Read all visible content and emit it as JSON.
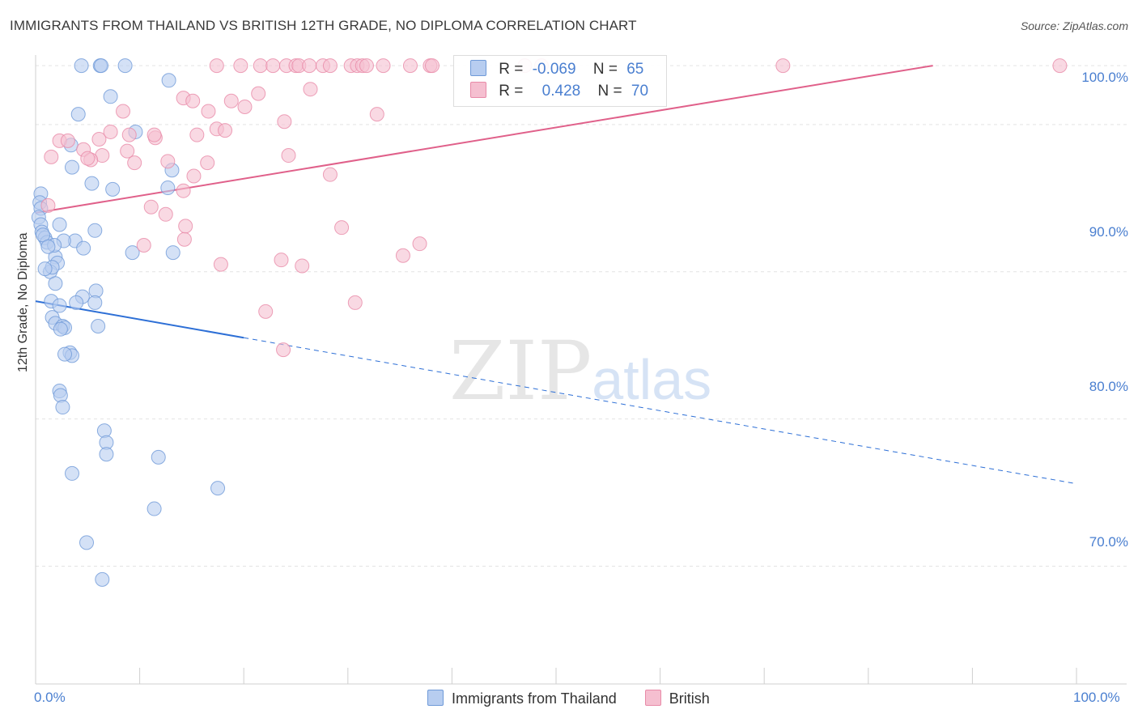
{
  "title": "IMMIGRANTS FROM THAILAND VS BRITISH 12TH GRADE, NO DIPLOMA CORRELATION CHART",
  "source": "Source: ZipAtlas.com",
  "watermark": {
    "zip": "ZIP",
    "atlas": "atlas"
  },
  "legend": {
    "rows": [
      {
        "r_label": "R =",
        "r_value": "-0.069",
        "n_label": "N =",
        "n_value": "65"
      },
      {
        "r_label": "R =",
        "r_value": "0.428",
        "n_label": "N =",
        "n_value": "70"
      }
    ]
  },
  "bottom_legend": [
    "Immigrants from Thailand",
    "British"
  ],
  "colors": {
    "blue_fill": "#b7cdf0",
    "blue_stroke": "#6f9ad8",
    "blue_line": "#2d6fd6",
    "pink_fill": "#f5bfd0",
    "pink_stroke": "#e88aa8",
    "pink_line": "#e0608a",
    "tick_text": "#4a7fd0",
    "grid": "#e3e3e3"
  },
  "chart_data": {
    "type": "scatter",
    "title": "IMMIGRANTS FROM THAILAND VS BRITISH 12TH GRADE, NO DIPLOMA CORRELATION CHART",
    "xlabel": "",
    "ylabel": "12th Grade, No Diploma",
    "xlim": [
      0,
      100
    ],
    "ylim": [
      62,
      104.5
    ],
    "x_tick_labels": [
      "0.0%",
      "100.0%"
    ],
    "y_ticks": [
      70,
      80,
      90,
      100
    ],
    "y_tick_labels": [
      "70.0%",
      "80.0%",
      "90.0%",
      "100.0%"
    ],
    "series": [
      {
        "name": "Immigrants from Thailand",
        "color": "#6f9ad8",
        "r": -0.069,
        "n": 65,
        "trend": {
          "x0": 0,
          "y0": 88.0,
          "x1": 100,
          "y1": 75.6,
          "solid_until": 20
        },
        "points": [
          [
            4.4,
            104
          ],
          [
            6.2,
            104
          ],
          [
            6.3,
            104
          ],
          [
            8.6,
            104
          ],
          [
            12.8,
            103
          ],
          [
            7.2,
            101.9
          ],
          [
            4.1,
            100.7
          ],
          [
            9.6,
            99.5
          ],
          [
            3.4,
            98.6
          ],
          [
            3.5,
            97.1
          ],
          [
            13.1,
            96.9
          ],
          [
            5.4,
            96.0
          ],
          [
            7.4,
            95.6
          ],
          [
            12.7,
            95.7
          ],
          [
            0.5,
            95.3
          ],
          [
            0.4,
            94.7
          ],
          [
            0.5,
            94.3
          ],
          [
            0.3,
            93.7
          ],
          [
            0.5,
            93.2
          ],
          [
            2.3,
            93.2
          ],
          [
            0.6,
            92.7
          ],
          [
            0.9,
            92.3
          ],
          [
            1.1,
            92.0
          ],
          [
            3.8,
            92.1
          ],
          [
            2.7,
            92.1
          ],
          [
            5.7,
            92.8
          ],
          [
            4.6,
            91.6
          ],
          [
            9.3,
            91.3
          ],
          [
            13.2,
            91.3
          ],
          [
            1.9,
            91.0
          ],
          [
            2.1,
            90.6
          ],
          [
            1.4,
            90.0
          ],
          [
            1.6,
            90.3
          ],
          [
            1.9,
            89.2
          ],
          [
            5.8,
            88.7
          ],
          [
            4.5,
            88.3
          ],
          [
            1.5,
            88.0
          ],
          [
            3.9,
            87.9
          ],
          [
            5.7,
            87.9
          ],
          [
            2.3,
            87.7
          ],
          [
            1.6,
            86.9
          ],
          [
            1.9,
            86.5
          ],
          [
            2.6,
            86.3
          ],
          [
            2.8,
            86.2
          ],
          [
            2.4,
            86.1
          ],
          [
            6.0,
            86.3
          ],
          [
            3.3,
            84.5
          ],
          [
            3.5,
            84.3
          ],
          [
            2.8,
            84.4
          ],
          [
            2.3,
            81.9
          ],
          [
            2.4,
            81.6
          ],
          [
            2.6,
            80.8
          ],
          [
            6.6,
            79.2
          ],
          [
            6.8,
            78.4
          ],
          [
            6.8,
            77.6
          ],
          [
            11.8,
            77.4
          ],
          [
            3.5,
            76.3
          ],
          [
            17.5,
            75.3
          ],
          [
            11.4,
            73.9
          ],
          [
            4.9,
            71.6
          ],
          [
            6.4,
            69.1
          ],
          [
            1.8,
            91.8
          ],
          [
            0.7,
            92.5
          ],
          [
            1.2,
            91.7
          ],
          [
            0.9,
            90.2
          ]
        ]
      },
      {
        "name": "British",
        "color": "#e88aa8",
        "r": 0.428,
        "n": 70,
        "trend": {
          "x0": 0,
          "y0": 94.0,
          "x1": 100,
          "y1": 105.6
        },
        "points": [
          [
            17.4,
            104
          ],
          [
            19.7,
            104
          ],
          [
            21.6,
            104
          ],
          [
            22.8,
            104
          ],
          [
            24.1,
            104
          ],
          [
            25.0,
            104
          ],
          [
            25.3,
            104
          ],
          [
            26.3,
            104
          ],
          [
            27.6,
            104
          ],
          [
            28.3,
            104
          ],
          [
            30.3,
            104
          ],
          [
            30.9,
            104
          ],
          [
            31.4,
            104
          ],
          [
            31.8,
            104
          ],
          [
            33.4,
            104
          ],
          [
            36.0,
            104
          ],
          [
            37.9,
            104
          ],
          [
            38.1,
            104
          ],
          [
            47.0,
            104
          ],
          [
            48.6,
            104
          ],
          [
            71.8,
            104
          ],
          [
            98.4,
            104
          ],
          [
            21.4,
            102.1
          ],
          [
            14.2,
            101.8
          ],
          [
            20.1,
            101.2
          ],
          [
            32.8,
            100.7
          ],
          [
            16.6,
            100.9
          ],
          [
            26.4,
            102.4
          ],
          [
            15.1,
            101.6
          ],
          [
            18.8,
            101.6
          ],
          [
            23.9,
            100.2
          ],
          [
            17.4,
            99.7
          ],
          [
            18.2,
            99.6
          ],
          [
            15.5,
            99.3
          ],
          [
            8.4,
            100.9
          ],
          [
            9.0,
            99.3
          ],
          [
            11.5,
            99.1
          ],
          [
            11.4,
            99.3
          ],
          [
            6.1,
            99.0
          ],
          [
            2.3,
            98.9
          ],
          [
            3.1,
            98.9
          ],
          [
            4.6,
            98.3
          ],
          [
            8.8,
            98.2
          ],
          [
            6.4,
            97.9
          ],
          [
            5.3,
            97.6
          ],
          [
            9.5,
            97.4
          ],
          [
            16.5,
            97.4
          ],
          [
            1.5,
            97.8
          ],
          [
            24.3,
            97.9
          ],
          [
            12.7,
            97.5
          ],
          [
            15.2,
            96.5
          ],
          [
            28.3,
            96.6
          ],
          [
            1.2,
            94.5
          ],
          [
            14.2,
            95.5
          ],
          [
            11.1,
            94.4
          ],
          [
            12.5,
            93.9
          ],
          [
            14.3,
            92.2
          ],
          [
            29.4,
            93.0
          ],
          [
            36.9,
            91.9
          ],
          [
            23.6,
            90.8
          ],
          [
            17.8,
            90.5
          ],
          [
            10.4,
            91.8
          ],
          [
            22.1,
            87.3
          ],
          [
            30.7,
            87.9
          ],
          [
            23.8,
            84.7
          ],
          [
            35.3,
            91.1
          ],
          [
            25.6,
            90.4
          ],
          [
            14.4,
            93.1
          ],
          [
            7.2,
            99.5
          ],
          [
            5.0,
            97.7
          ]
        ]
      }
    ]
  }
}
